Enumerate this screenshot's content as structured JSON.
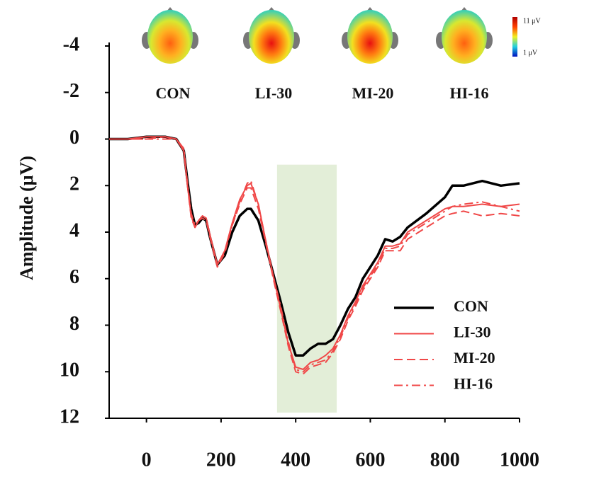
{
  "chart_data": {
    "type": "line",
    "y_label": "Amplitude (μV)",
    "x": [
      -100,
      -50,
      0,
      50,
      80,
      100,
      110,
      120,
      130,
      140,
      150,
      160,
      170,
      190,
      210,
      230,
      250,
      270,
      280,
      300,
      320,
      340,
      360,
      380,
      400,
      420,
      440,
      460,
      480,
      500,
      520,
      540,
      560,
      580,
      600,
      620,
      640,
      660,
      680,
      700,
      750,
      800,
      820,
      850,
      900,
      950,
      1000
    ],
    "series": [
      {
        "name": "CON",
        "color": "#000000",
        "dash": "solid",
        "values": [
          0,
          0,
          -0.1,
          -0.1,
          0,
          0.5,
          1.8,
          3.0,
          3.7,
          3.6,
          3.4,
          3.5,
          4.2,
          5.4,
          5.0,
          4.0,
          3.3,
          3.0,
          3.0,
          3.5,
          4.6,
          5.8,
          7.0,
          8.3,
          9.3,
          9.3,
          9.0,
          8.8,
          8.8,
          8.6,
          8.0,
          7.3,
          6.8,
          6.0,
          5.5,
          5.0,
          4.3,
          4.4,
          4.2,
          3.8,
          3.2,
          2.5,
          2.0,
          2.0,
          1.8,
          2.0,
          1.9
        ]
      },
      {
        "name": "LI-30",
        "color": "#f04848",
        "dash": "solid",
        "values": [
          0,
          0,
          -0.1,
          -0.1,
          0,
          0.5,
          2.0,
          3.3,
          3.8,
          3.5,
          3.3,
          3.4,
          4.1,
          5.4,
          4.8,
          3.6,
          2.6,
          2.0,
          1.9,
          2.8,
          4.4,
          5.9,
          7.3,
          8.8,
          9.8,
          9.9,
          9.6,
          9.5,
          9.3,
          9.0,
          8.4,
          7.6,
          7.0,
          6.3,
          5.8,
          5.3,
          4.6,
          4.6,
          4.5,
          4.0,
          3.5,
          3.0,
          2.9,
          2.9,
          2.8,
          2.9,
          2.8
        ]
      },
      {
        "name": "MI-20",
        "color": "#f04848",
        "dash": "dashed",
        "values": [
          0,
          0,
          0,
          -0.1,
          0,
          0.5,
          2.0,
          3.4,
          3.8,
          3.5,
          3.4,
          3.5,
          4.2,
          5.5,
          4.9,
          3.7,
          2.8,
          2.1,
          2.1,
          3.0,
          4.5,
          6.0,
          7.4,
          8.9,
          10.0,
          10.1,
          9.8,
          9.7,
          9.6,
          9.2,
          8.6,
          7.8,
          7.2,
          6.5,
          6.0,
          5.5,
          4.8,
          4.8,
          4.8,
          4.3,
          3.8,
          3.3,
          3.2,
          3.1,
          3.3,
          3.2,
          3.3
        ]
      },
      {
        "name": "HI-16",
        "color": "#f04848",
        "dash": "dashdot",
        "values": [
          0,
          0,
          0,
          0,
          0,
          0.4,
          1.9,
          3.2,
          3.7,
          3.5,
          3.3,
          3.4,
          4.1,
          5.4,
          4.8,
          3.7,
          2.7,
          1.9,
          1.8,
          2.8,
          4.4,
          5.9,
          7.2,
          8.7,
          9.9,
          10.0,
          9.7,
          9.6,
          9.5,
          9.1,
          8.5,
          7.7,
          7.1,
          6.4,
          5.9,
          5.4,
          4.7,
          4.7,
          4.6,
          4.1,
          3.6,
          3.1,
          2.9,
          2.8,
          2.7,
          2.9,
          3.1
        ]
      }
    ],
    "xlim": [
      -100,
      1000
    ],
    "xticks": [
      0,
      200,
      400,
      600,
      800,
      1000
    ],
    "ylim": [
      -4,
      12
    ],
    "yticks": [
      -4,
      -2,
      0,
      2,
      4,
      6,
      8,
      10,
      12
    ],
    "y_inverted": true,
    "shaded_range": [
      350,
      510
    ],
    "shaded_color": "#e3eed8",
    "colorbar": {
      "max_label": "11 μV",
      "min_label": "1 μV"
    }
  }
}
